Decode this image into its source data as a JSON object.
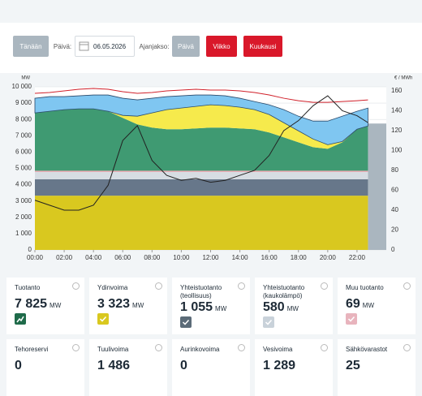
{
  "controls": {
    "today": "Tänään",
    "day_label": "Päivä:",
    "date": "06.05.2026",
    "period_label": "Ajanjakso:",
    "periods": [
      "Päivä",
      "Viikko",
      "Kuukausi"
    ]
  },
  "chart_data": {
    "type": "area",
    "stacked": true,
    "grid": true,
    "ylabel": "MW",
    "y2label": "€ / MWh",
    "x": [
      0,
      1,
      2,
      3,
      4,
      5,
      6,
      7,
      8,
      9,
      10,
      11,
      12,
      13,
      14,
      15,
      16,
      17,
      18,
      19,
      20,
      21,
      22,
      22.75
    ],
    "xlim": [
      0,
      24
    ],
    "xticks": [
      {
        "value": 0,
        "label": "00:00"
      },
      {
        "value": 2,
        "label": "02:00"
      },
      {
        "value": 4,
        "label": "04:00"
      },
      {
        "value": 6,
        "label": "06:00"
      },
      {
        "value": 8,
        "label": "08:00"
      },
      {
        "value": 10,
        "label": "10:00"
      },
      {
        "value": 12,
        "label": "12:00"
      },
      {
        "value": 14,
        "label": "14:00"
      },
      {
        "value": 16,
        "label": "16:00"
      },
      {
        "value": 18,
        "label": "18:00"
      },
      {
        "value": 20,
        "label": "20:00"
      },
      {
        "value": 22,
        "label": "22:00"
      }
    ],
    "ylim": [
      0,
      10000
    ],
    "yticks": [
      0,
      {
        "value": 1000,
        "label": "1 000"
      },
      {
        "value": 2000,
        "label": "2 000"
      },
      {
        "value": 3000,
        "label": "3 000"
      },
      {
        "value": 4000,
        "label": "4 000"
      },
      {
        "value": 5000,
        "label": "5 000"
      },
      {
        "value": 6000,
        "label": "6 000"
      },
      {
        "value": 7000,
        "label": "7 000"
      },
      {
        "value": 8000,
        "label": "8 000"
      },
      {
        "value": 9000,
        "label": "9 000"
      },
      {
        "value": 10000,
        "label": "10 000"
      }
    ],
    "y2lim": [
      0,
      164
    ],
    "y2ticks": [
      0,
      20,
      40,
      60,
      80,
      100,
      120,
      140,
      160
    ],
    "shaded_region": {
      "xlim": [
        22.75,
        24
      ],
      "value": 7750,
      "color": "#aab6bf"
    },
    "series": [
      {
        "type": "area",
        "color": "#d9c81f",
        "values": [
          3330,
          3330,
          3330,
          3330,
          3330,
          3330,
          3330,
          3330,
          3330,
          3330,
          3330,
          3330,
          3330,
          3330,
          3330,
          3330,
          3330,
          3330,
          3330,
          3330,
          3330,
          3330,
          3330,
          3330
        ]
      },
      {
        "type": "area",
        "color": "#67778a",
        "values": [
          1000,
          1000,
          1000,
          1000,
          1000,
          1000,
          1000,
          1000,
          1000,
          1000,
          1000,
          1000,
          1000,
          1000,
          1000,
          1000,
          1000,
          1000,
          1000,
          1000,
          1000,
          1000,
          1000,
          1000
        ]
      },
      {
        "type": "area",
        "color": "#d7dde3",
        "values": [
          450,
          450,
          450,
          450,
          450,
          450,
          450,
          450,
          450,
          450,
          450,
          450,
          450,
          450,
          450,
          450,
          450,
          450,
          450,
          450,
          450,
          450,
          450,
          450
        ]
      },
      {
        "type": "area",
        "color": "#e8a3ad",
        "values": [
          80,
          80,
          80,
          80,
          80,
          80,
          80,
          80,
          80,
          80,
          80,
          80,
          80,
          80,
          80,
          80,
          80,
          80,
          80,
          80,
          80,
          80,
          80,
          80
        ]
      },
      {
        "type": "area",
        "color": "#3f9a72",
        "values": [
          3540,
          3640,
          3740,
          3790,
          3790,
          3640,
          3240,
          2840,
          2640,
          2540,
          2540,
          2590,
          2640,
          2640,
          2590,
          2540,
          2340,
          2040,
          1740,
          1440,
          1340,
          1740,
          2540,
          2740
        ]
      },
      {
        "type": "area",
        "color": "#f6ea4c",
        "values": [
          0,
          0,
          0,
          0,
          0,
          0,
          150,
          500,
          900,
          1200,
          1300,
          1350,
          1400,
          1350,
          1300,
          1200,
          1100,
          900,
          700,
          500,
          250,
          50,
          0,
          0
        ]
      },
      {
        "type": "area",
        "color": "#7fc6f1",
        "values": [
          900,
          900,
          800,
          800,
          850,
          1000,
          1050,
          1000,
          900,
          800,
          750,
          700,
          600,
          600,
          550,
          500,
          600,
          800,
          900,
          1100,
          1450,
          1550,
          1100,
          1100
        ]
      },
      {
        "type": "line",
        "color": "#d0202a",
        "values": [
          9600,
          9650,
          9750,
          9850,
          9900,
          9850,
          9700,
          9600,
          9650,
          9750,
          9800,
          9850,
          9800,
          9800,
          9750,
          9650,
          9500,
          9300,
          9150,
          9050,
          9050,
          9100,
          9150,
          9200
        ]
      },
      {
        "type": "line",
        "axis": "y2",
        "color": "#222222",
        "values": [
          50,
          45,
          40,
          40,
          45,
          65,
          110,
          125,
          90,
          75,
          70,
          72,
          68,
          70,
          75,
          80,
          95,
          120,
          130,
          145,
          155,
          140,
          135,
          128
        ]
      }
    ]
  },
  "cards": [
    {
      "label": "Tuotanto",
      "value": "7 825",
      "unit": "MW",
      "color": "#1f6b4a"
    },
    {
      "label": "Ydinvoima",
      "value": "3 323",
      "unit": "MW",
      "color": "#d9c81f"
    },
    {
      "label": "Yhteistuotanto (teollisuus)",
      "value": "1 055",
      "unit": "MW",
      "color": "#5b6b78"
    },
    {
      "label": "Yhteistuotanto (kaukolämpö)",
      "value": "580",
      "unit": "MW",
      "color": "#c9d2da"
    },
    {
      "label": "Muu tuotanto",
      "value": "69",
      "unit": "MW",
      "color": "#e8b4bd"
    },
    {
      "label": "Tehoreservi",
      "value": "0"
    },
    {
      "label": "Tuulivoima",
      "value": "1 486"
    },
    {
      "label": "Aurinkovoima",
      "value": "0"
    },
    {
      "label": "Vesivoima",
      "value": "1 289"
    },
    {
      "label": "Sähkövarastot",
      "value": "25"
    }
  ]
}
